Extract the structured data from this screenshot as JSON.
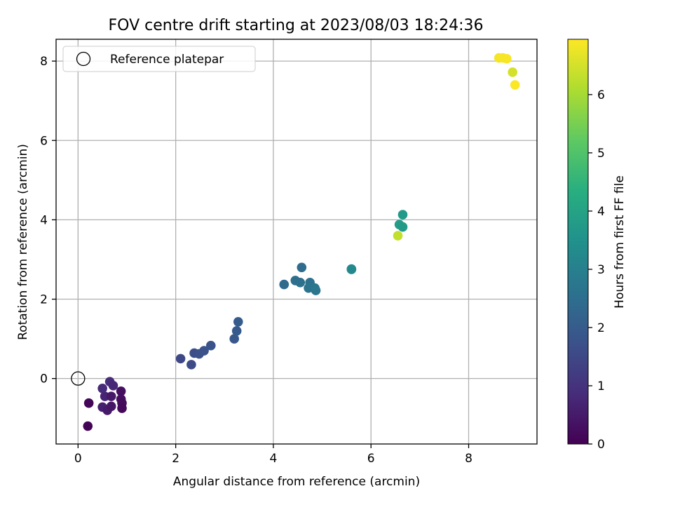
{
  "chart_data": {
    "type": "scatter",
    "title": "FOV centre drift starting at 2023/08/03 18:24:36",
    "xlabel": "Angular distance from reference (arcmin)",
    "ylabel": "Rotation from reference (arcmin)",
    "xlim": [
      -0.45,
      9.4
    ],
    "ylim": [
      -1.65,
      8.55
    ],
    "xticks": [
      0,
      2,
      4,
      6,
      8
    ],
    "yticks": [
      0,
      2,
      4,
      6,
      8
    ],
    "grid": true,
    "legend": {
      "placement": "top-left",
      "entries": [
        "Reference platepar"
      ]
    },
    "reference": {
      "x": 0,
      "y": 0
    },
    "colorbar": {
      "label": "Hours from first FF file",
      "range": [
        0,
        6.95
      ],
      "ticks": [
        0,
        1,
        2,
        3,
        4,
        5,
        6
      ],
      "colormap": "viridis"
    },
    "points": [
      {
        "x": 0.2,
        "y": -1.2,
        "h": 0.05
      },
      {
        "x": 0.22,
        "y": -0.62,
        "h": 0.1
      },
      {
        "x": 0.5,
        "y": -0.72,
        "h": 0.6
      },
      {
        "x": 0.6,
        "y": -0.8,
        "h": 0.5
      },
      {
        "x": 0.68,
        "y": -0.7,
        "h": 0.4
      },
      {
        "x": 0.55,
        "y": -0.45,
        "h": 0.7
      },
      {
        "x": 0.68,
        "y": -0.45,
        "h": 0.45
      },
      {
        "x": 0.5,
        "y": -0.25,
        "h": 0.8
      },
      {
        "x": 0.65,
        "y": -0.08,
        "h": 0.85
      },
      {
        "x": 0.72,
        "y": -0.18,
        "h": 0.75
      },
      {
        "x": 0.88,
        "y": -0.32,
        "h": 0.3
      },
      {
        "x": 0.88,
        "y": -0.52,
        "h": 0.25
      },
      {
        "x": 0.9,
        "y": -0.62,
        "h": 0.2
      },
      {
        "x": 0.9,
        "y": -0.75,
        "h": 0.15
      },
      {
        "x": 2.1,
        "y": 0.5,
        "h": 1.5
      },
      {
        "x": 2.32,
        "y": 0.35,
        "h": 1.6
      },
      {
        "x": 2.38,
        "y": 0.64,
        "h": 1.65
      },
      {
        "x": 2.48,
        "y": 0.62,
        "h": 1.7
      },
      {
        "x": 2.58,
        "y": 0.7,
        "h": 1.75
      },
      {
        "x": 2.72,
        "y": 0.83,
        "h": 1.8
      },
      {
        "x": 3.2,
        "y": 1.0,
        "h": 1.9
      },
      {
        "x": 3.25,
        "y": 1.2,
        "h": 1.95
      },
      {
        "x": 3.28,
        "y": 1.43,
        "h": 2.0
      },
      {
        "x": 4.22,
        "y": 2.37,
        "h": 2.4
      },
      {
        "x": 4.45,
        "y": 2.47,
        "h": 2.5
      },
      {
        "x": 4.58,
        "y": 2.8,
        "h": 2.45
      },
      {
        "x": 4.55,
        "y": 2.42,
        "h": 2.55
      },
      {
        "x": 4.75,
        "y": 2.42,
        "h": 2.6
      },
      {
        "x": 4.72,
        "y": 2.28,
        "h": 2.65
      },
      {
        "x": 4.85,
        "y": 2.28,
        "h": 2.7
      },
      {
        "x": 4.87,
        "y": 2.22,
        "h": 2.75
      },
      {
        "x": 5.6,
        "y": 2.76,
        "h": 3.2
      },
      {
        "x": 5.6,
        "y": 2.75,
        "h": 3.25
      },
      {
        "x": 6.55,
        "y": 3.6,
        "h": 6.3
      },
      {
        "x": 6.58,
        "y": 3.88,
        "h": 3.8
      },
      {
        "x": 6.65,
        "y": 3.82,
        "h": 3.75
      },
      {
        "x": 6.65,
        "y": 4.13,
        "h": 3.7
      },
      {
        "x": 8.62,
        "y": 8.08,
        "h": 6.85
      },
      {
        "x": 8.7,
        "y": 8.08,
        "h": 6.87
      },
      {
        "x": 8.78,
        "y": 8.06,
        "h": 6.9
      },
      {
        "x": 8.9,
        "y": 7.72,
        "h": 6.5
      },
      {
        "x": 8.95,
        "y": 7.4,
        "h": 6.92
      }
    ]
  }
}
